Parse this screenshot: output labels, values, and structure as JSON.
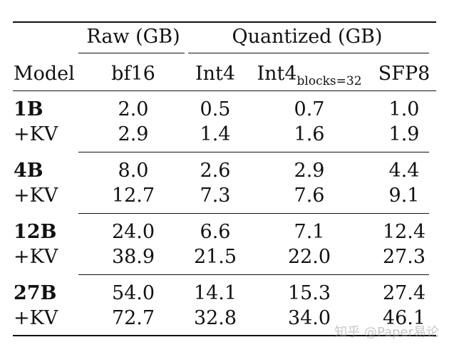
{
  "table": {
    "header_groups": {
      "raw": "Raw (GB)",
      "quantized": "Quantized (GB)"
    },
    "columns": {
      "model": "Model",
      "bf16": "bf16",
      "int4": "Int4",
      "int4_blocks_base": "Int4",
      "int4_blocks_sub": "blocks=32",
      "sfp8": "SFP8"
    },
    "rows": [
      {
        "model": "1B",
        "bf16": "2.0",
        "int4": "0.5",
        "int4_blocks": "0.7",
        "sfp8": "1.0",
        "kv": {
          "label": "+KV",
          "bf16": "2.9",
          "int4": "1.4",
          "int4_blocks": "1.6",
          "sfp8": "1.9"
        }
      },
      {
        "model": "4B",
        "bf16": "8.0",
        "int4": "2.6",
        "int4_blocks": "2.9",
        "sfp8": "4.4",
        "kv": {
          "label": "+KV",
          "bf16": "12.7",
          "int4": "7.3",
          "int4_blocks": "7.6",
          "sfp8": "9.1"
        }
      },
      {
        "model": "12B",
        "bf16": "24.0",
        "int4": "6.6",
        "int4_blocks": "7.1",
        "sfp8": "12.4",
        "kv": {
          "label": "+KV",
          "bf16": "38.9",
          "int4": "21.5",
          "int4_blocks": "22.0",
          "sfp8": "27.3"
        }
      },
      {
        "model": "27B",
        "bf16": "54.0",
        "int4": "14.1",
        "int4_blocks": "15.3",
        "sfp8": "27.4",
        "kv": {
          "label": "+KV",
          "bf16": "72.7",
          "int4": "32.8",
          "int4_blocks": "34.0",
          "sfp8": "46.1"
        }
      }
    ]
  },
  "watermark": "知乎 @Paper易论"
}
